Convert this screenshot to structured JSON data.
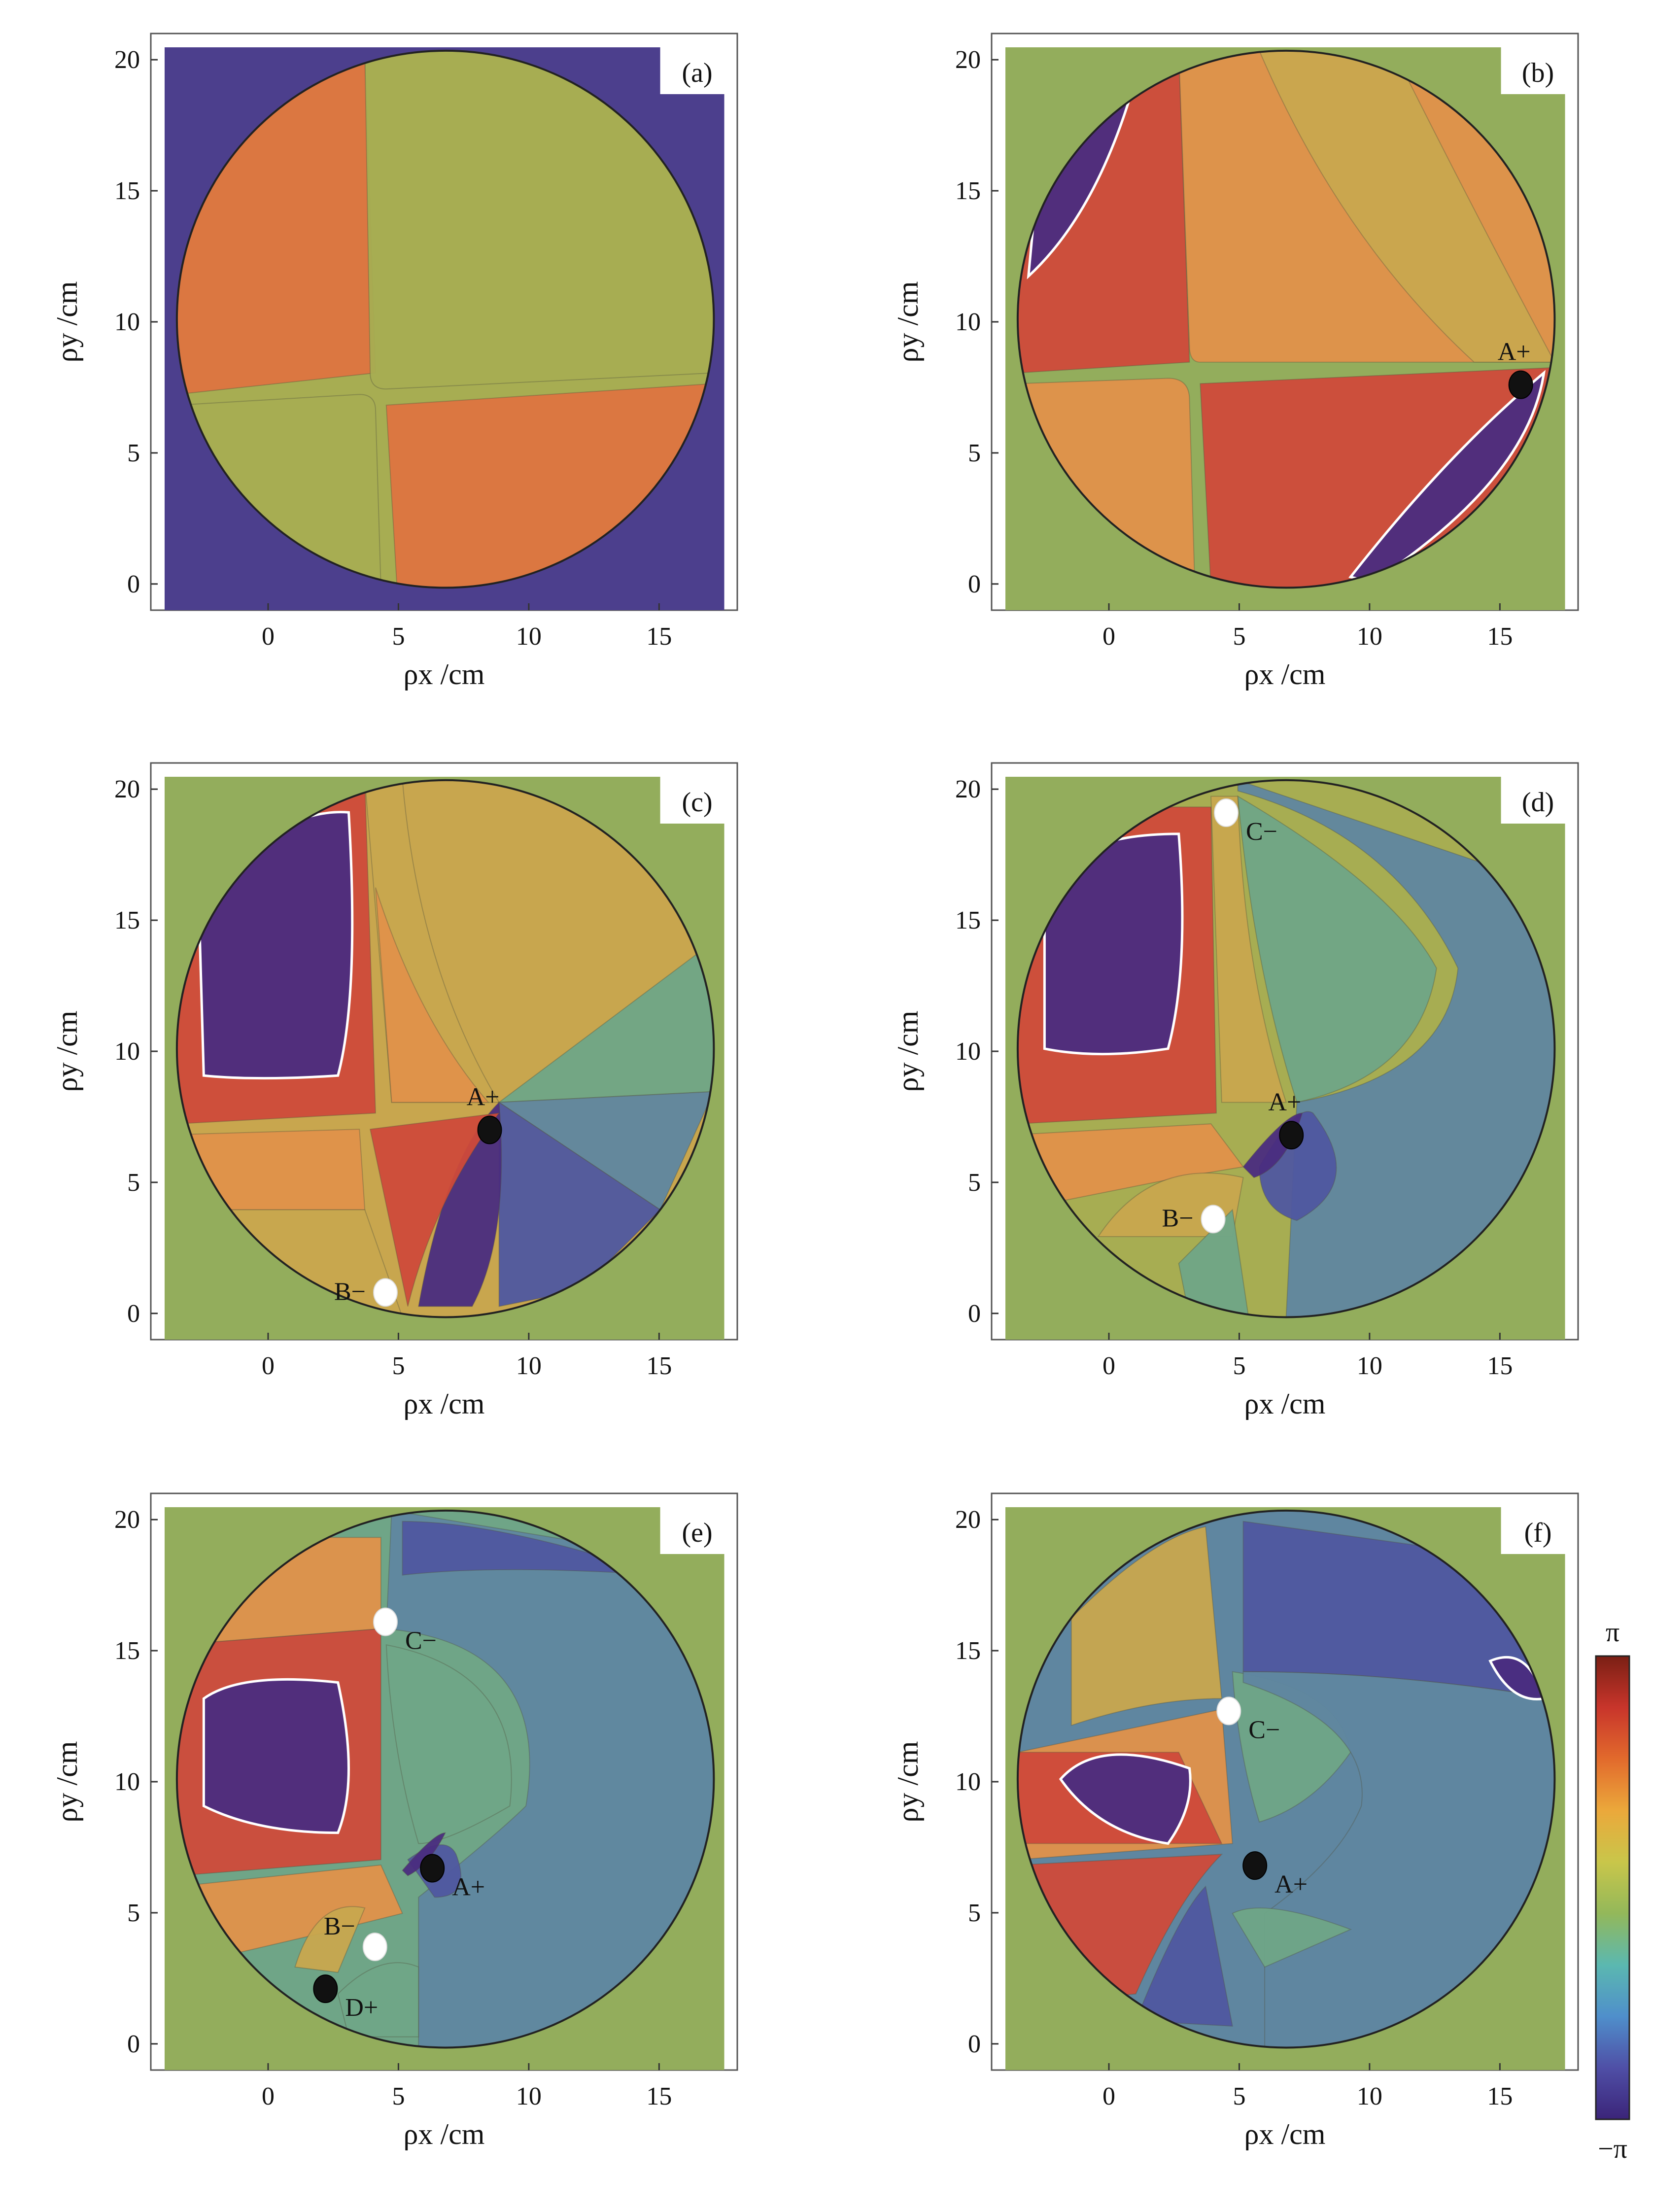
{
  "colors": {
    "purple": "#4c3f8d",
    "green": "#93ad5c",
    "olive": "#a7ad52",
    "orange": "#dd7440",
    "lightorange": "#e0914a",
    "red": "#cf4a3a",
    "mustard": "#c8a64e",
    "darkpurple": "#4a2c7f",
    "teal": "#6fa587",
    "steelblue": "#5f86a0",
    "blue": "#4f57a0",
    "singularity_black": "#111111",
    "singularity_white": "#ffffff"
  },
  "chart_data": [
    {
      "type": "heatmap",
      "panel_label": "(a)",
      "xlabel": "ρx /cm",
      "ylabel": "ρy /cm",
      "xticks": [
        "0",
        "5",
        "10",
        "15"
      ],
      "yticks": [
        "0",
        "5",
        "10",
        "15",
        "20"
      ],
      "xlim": [
        -4.5,
        18
      ],
      "ylim": [
        -1,
        21
      ],
      "circle_center": [
        6.8,
        10.1
      ],
      "circle_radius": 10.3,
      "background": "purple",
      "singularities": []
    },
    {
      "type": "heatmap",
      "panel_label": "(b)",
      "xlabel": "ρx /cm",
      "ylabel": "ρy /cm",
      "xticks": [
        "0",
        "5",
        "10",
        "15"
      ],
      "yticks": [
        "0",
        "5",
        "10",
        "15",
        "20"
      ],
      "xlim": [
        -4.5,
        18
      ],
      "ylim": [
        -1,
        21
      ],
      "circle_center": [
        6.8,
        10.1
      ],
      "circle_radius": 10.3,
      "background": "green",
      "singularities": [
        {
          "label": "A+",
          "x": 15.8,
          "y": 7.6,
          "charge": "+",
          "label_side": "above"
        }
      ]
    },
    {
      "type": "heatmap",
      "panel_label": "(c)",
      "xlabel": "ρx /cm",
      "ylabel": "ρy /cm",
      "xticks": [
        "0",
        "5",
        "10",
        "15"
      ],
      "yticks": [
        "0",
        "5",
        "10",
        "15",
        "20"
      ],
      "xlim": [
        -4.5,
        18
      ],
      "ylim": [
        -1,
        21
      ],
      "circle_center": [
        6.8,
        10.1
      ],
      "circle_radius": 10.3,
      "background": "green",
      "singularities": [
        {
          "label": "A+",
          "x": 8.5,
          "y": 7.0,
          "charge": "+",
          "label_side": "above"
        },
        {
          "label": "B−",
          "x": 4.5,
          "y": 0.8,
          "charge": "−",
          "label_side": "left"
        }
      ]
    },
    {
      "type": "heatmap",
      "panel_label": "(d)",
      "xlabel": "ρx /cm",
      "ylabel": "ρy /cm",
      "xticks": [
        "0",
        "5",
        "10",
        "15"
      ],
      "yticks": [
        "0",
        "5",
        "10",
        "15",
        "20"
      ],
      "xlim": [
        -4.5,
        18
      ],
      "ylim": [
        -1,
        21
      ],
      "circle_center": [
        6.8,
        10.1
      ],
      "circle_radius": 10.3,
      "background": "green",
      "singularities": [
        {
          "label": "A+",
          "x": 7.0,
          "y": 6.8,
          "charge": "+",
          "label_side": "above"
        },
        {
          "label": "B−",
          "x": 4.0,
          "y": 3.6,
          "charge": "−",
          "label_side": "left"
        },
        {
          "label": "C−",
          "x": 4.5,
          "y": 19.1,
          "charge": "−",
          "label_side": "right"
        }
      ]
    },
    {
      "type": "heatmap",
      "panel_label": "(e)",
      "xlabel": "ρx /cm",
      "ylabel": "ρy /cm",
      "xticks": [
        "0",
        "5",
        "10",
        "15"
      ],
      "yticks": [
        "0",
        "5",
        "10",
        "15",
        "20"
      ],
      "xlim": [
        -4.5,
        18
      ],
      "ylim": [
        -1,
        21
      ],
      "circle_center": [
        6.8,
        10.1
      ],
      "circle_radius": 10.3,
      "background": "green",
      "singularities": [
        {
          "label": "A+",
          "x": 6.3,
          "y": 6.7,
          "charge": "+",
          "label_side": "right"
        },
        {
          "label": "B−",
          "x": 4.1,
          "y": 3.7,
          "charge": "−",
          "label_side": "upleft"
        },
        {
          "label": "C−",
          "x": 4.5,
          "y": 16.1,
          "charge": "−",
          "label_side": "right"
        },
        {
          "label": "D+",
          "x": 2.2,
          "y": 2.1,
          "charge": "+",
          "label_side": "right"
        }
      ]
    },
    {
      "type": "heatmap",
      "panel_label": "(f)",
      "xlabel": "ρx /cm",
      "ylabel": "ρy /cm",
      "xticks": [
        "0",
        "5",
        "10",
        "15"
      ],
      "yticks": [
        "0",
        "5",
        "10",
        "15",
        "20"
      ],
      "xlim": [
        -4.5,
        18
      ],
      "ylim": [
        -1,
        21
      ],
      "circle_center": [
        6.8,
        10.1
      ],
      "circle_radius": 10.3,
      "background": "green",
      "singularities": [
        {
          "label": "A+",
          "x": 5.6,
          "y": 6.8,
          "charge": "+",
          "label_side": "right"
        },
        {
          "label": "C−",
          "x": 4.6,
          "y": 12.7,
          "charge": "−",
          "label_side": "right"
        }
      ]
    }
  ],
  "colorbar": {
    "top_label": "π",
    "bottom_label": "−π",
    "stops": [
      "#7a1f14",
      "#c8352b",
      "#e26a2c",
      "#eba83b",
      "#c9c64a",
      "#93b85a",
      "#5bb8b0",
      "#4f8fcb",
      "#4f4fa6",
      "#3b2479"
    ]
  }
}
